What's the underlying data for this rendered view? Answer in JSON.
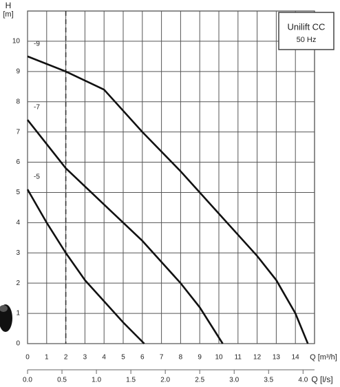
{
  "chart_data": {
    "type": "line",
    "title": "Unilift CC",
    "subtitle": "50 Hz",
    "y_label": "H",
    "y_unit": "[m]",
    "x_label": "Q [m³/h]",
    "x2_label": "Q [l/s]",
    "xlim": [
      0,
      15
    ],
    "ylim": [
      0,
      11
    ],
    "xticks": [
      0,
      1,
      2,
      3,
      4,
      5,
      6,
      7,
      8,
      9,
      10,
      11,
      12,
      13,
      14
    ],
    "yticks": [
      0,
      1,
      2,
      3,
      4,
      5,
      6,
      7,
      8,
      9,
      10
    ],
    "x2lim": [
      0,
      4.1667
    ],
    "x2ticks": [
      {
        "value": 0,
        "label": "0.0"
      },
      {
        "value": 0.5,
        "label": "0.5"
      },
      {
        "value": 1,
        "label": "1.0"
      },
      {
        "value": 1.5,
        "label": "1.5"
      },
      {
        "value": 2,
        "label": "2.0"
      },
      {
        "value": 2.5,
        "label": "2.5"
      },
      {
        "value": 3,
        "label": "3.0"
      },
      {
        "value": 3.5,
        "label": "3.5"
      },
      {
        "value": 4,
        "label": "4.0"
      }
    ],
    "grid": true,
    "reference_x": 2,
    "series": [
      {
        "name": "-9",
        "color": "#111111",
        "x": [
          0,
          2,
          4,
          6,
          8,
          10,
          12,
          13,
          14,
          14.65
        ],
        "values": [
          9.5,
          9.0,
          8.4,
          7.0,
          5.7,
          4.3,
          2.9,
          2.1,
          1.0,
          0
        ]
      },
      {
        "name": "-7",
        "color": "#111111",
        "x": [
          0,
          2,
          4,
          6,
          8,
          9,
          10.2
        ],
        "values": [
          7.4,
          5.8,
          4.6,
          3.4,
          2.0,
          1.2,
          0
        ]
      },
      {
        "name": "-5",
        "color": "#111111",
        "x": [
          0,
          1,
          2,
          3,
          4,
          5,
          6.1
        ],
        "values": [
          5.1,
          4.0,
          3.0,
          2.1,
          1.4,
          0.7,
          0
        ]
      }
    ]
  }
}
